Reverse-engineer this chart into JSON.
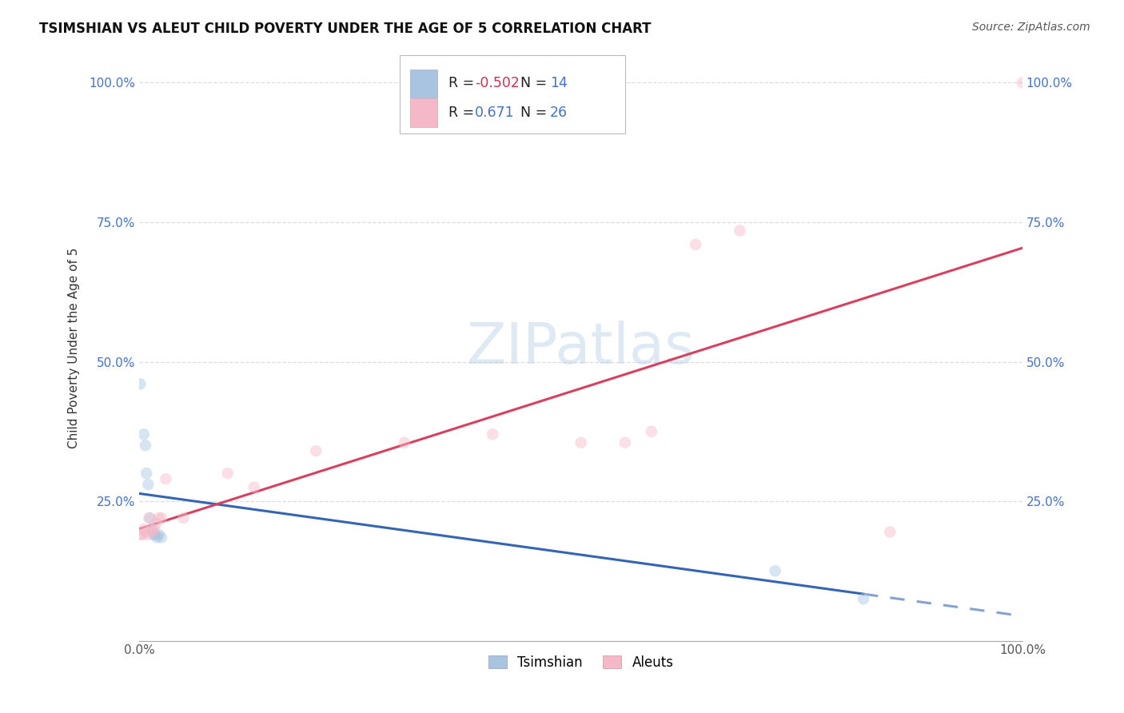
{
  "title": "TSIMSHIAN VS ALEUT CHILD POVERTY UNDER THE AGE OF 5 CORRELATION CHART",
  "source": "Source: ZipAtlas.com",
  "ylabel": "Child Poverty Under the Age of 5",
  "watermark": "ZIPatlas",
  "tsimshian": {
    "label": "Tsimshian",
    "color": "#a8c4e0",
    "R": -0.502,
    "N": 14,
    "x": [
      0.001,
      0.005,
      0.007,
      0.008,
      0.01,
      0.012,
      0.014,
      0.016,
      0.018,
      0.02,
      0.022,
      0.025,
      0.72,
      0.82
    ],
    "y": [
      0.46,
      0.37,
      0.35,
      0.3,
      0.28,
      0.22,
      0.2,
      0.19,
      0.19,
      0.185,
      0.19,
      0.185,
      0.125,
      0.075
    ]
  },
  "aleuts": {
    "label": "Aleuts",
    "color": "#f4b8c8",
    "R": 0.671,
    "N": 26,
    "x": [
      0.001,
      0.003,
      0.005,
      0.007,
      0.009,
      0.011,
      0.013,
      0.015,
      0.017,
      0.019,
      0.022,
      0.025,
      0.03,
      0.05,
      0.1,
      0.13,
      0.2,
      0.3,
      0.4,
      0.5,
      0.55,
      0.58,
      0.63,
      0.68,
      0.85,
      1.0
    ],
    "y": [
      0.19,
      0.19,
      0.2,
      0.195,
      0.19,
      0.22,
      0.2,
      0.195,
      0.2,
      0.21,
      0.22,
      0.22,
      0.29,
      0.22,
      0.3,
      0.275,
      0.34,
      0.355,
      0.37,
      0.355,
      0.355,
      0.375,
      0.71,
      0.735,
      0.195,
      1.0
    ]
  },
  "xlim": [
    0,
    1.0
  ],
  "ylim": [
    0,
    1.05
  ],
  "xticks": [
    0.0,
    1.0
  ],
  "yticks": [
    0.0,
    0.25,
    0.5,
    0.75,
    1.0
  ],
  "grid_color": "#dddddd",
  "background_color": "#ffffff",
  "marker_size": 110,
  "marker_alpha": 0.45,
  "line_width": 2.2,
  "tsimshian_line_color": "#3464b4",
  "aleuts_line_color": "#d84060",
  "label_color": "#4472c4"
}
